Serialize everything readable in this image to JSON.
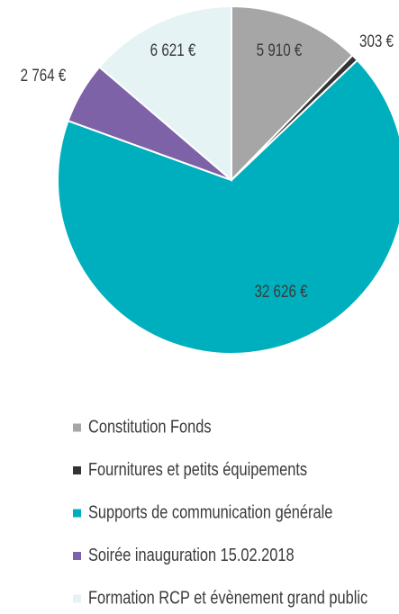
{
  "chart_data": {
    "type": "pie",
    "categories": [
      "Constitution Fonds",
      "Fournitures et petits équipements",
      "Supports de communication générale",
      "Soirée inauguration 15.02.2018",
      "Formation RCP et évènement grand public"
    ],
    "values": [
      5910,
      303,
      32626,
      2764,
      6621
    ],
    "value_labels": [
      "5 910 €",
      "303 €",
      "32 626 €",
      "2 764 €",
      "6 621 €"
    ],
    "colors": [
      "#a6a6a6",
      "#333333",
      "#00afbd",
      "#7e62a7",
      "#e5f3f5"
    ],
    "legend": "bottom"
  }
}
